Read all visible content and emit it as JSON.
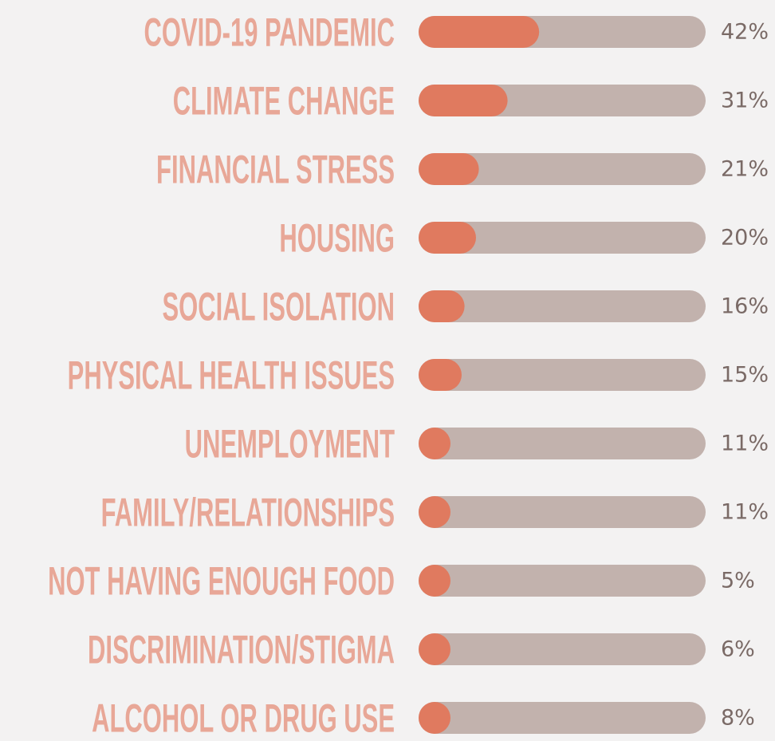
{
  "chart_data": {
    "type": "bar",
    "orientation": "horizontal",
    "categories": [
      "COVID-19 PANDEMIC",
      "CLIMATE CHANGE",
      "FINANCIAL STRESS",
      "HOUSING",
      "SOCIAL ISOLATION",
      "PHYSICAL HEALTH ISSUES",
      "UNEMPLOYMENT",
      "FAMILY/RELATIONSHIPS",
      "NOT HAVING ENOUGH FOOD",
      "DISCRIMINATION/STIGMA",
      "ALCOHOL OR DRUG USE"
    ],
    "values": [
      42,
      31,
      21,
      20,
      16,
      15,
      11,
      11,
      5,
      6,
      8
    ],
    "value_labels": [
      "42%",
      "31%",
      "21%",
      "20%",
      "16%",
      "15%",
      "11%",
      "11%",
      "5%",
      "6%",
      "8%"
    ],
    "xlim": [
      0,
      100
    ],
    "color": "#e07a5f",
    "track_color": "#c2b2ad",
    "label_color": "#e8a797"
  }
}
